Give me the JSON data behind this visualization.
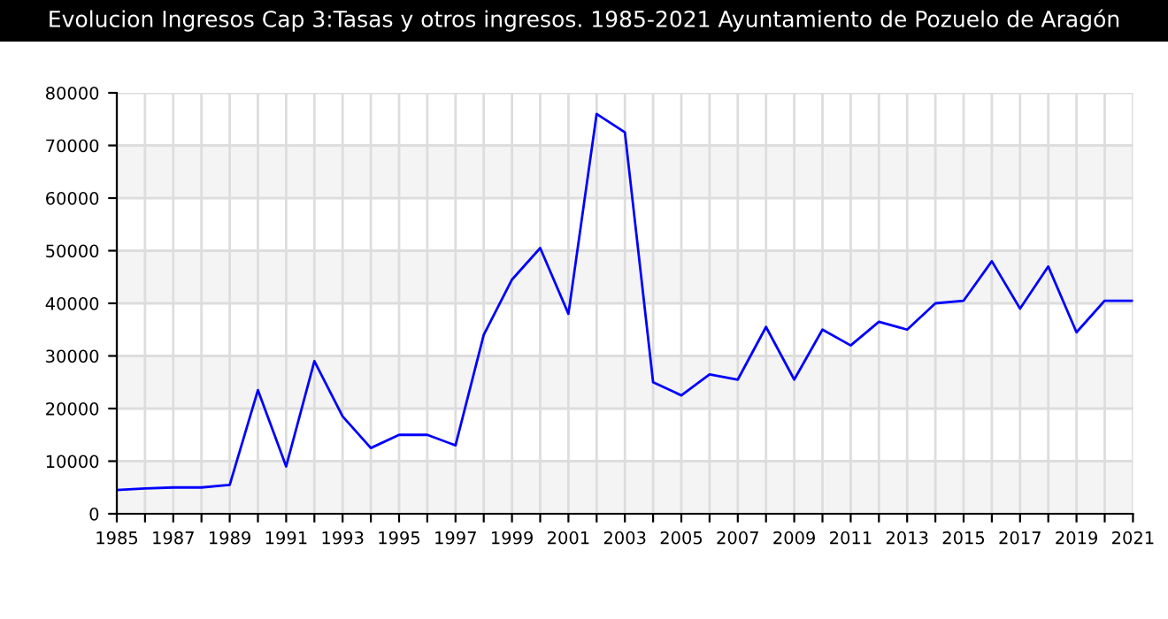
{
  "chart_data": {
    "type": "line",
    "title": "Evolucion Ingresos Cap 3:Tasas y otros ingresos. 1985-2021 Ayuntamiento de Pozuelo de Aragón",
    "x": [
      1985,
      1986,
      1987,
      1988,
      1989,
      1990,
      1991,
      1992,
      1993,
      1994,
      1995,
      1996,
      1997,
      1998,
      1999,
      2000,
      2001,
      2002,
      2003,
      2004,
      2005,
      2006,
      2007,
      2008,
      2009,
      2010,
      2011,
      2012,
      2013,
      2014,
      2015,
      2016,
      2017,
      2018,
      2019,
      2020,
      2021
    ],
    "series": [
      {
        "color": "#0000ff",
        "values": [
          4500,
          4800,
          5000,
          5000,
          5500,
          23500,
          9000,
          29000,
          18500,
          12500,
          15000,
          15000,
          13000,
          34000,
          44500,
          50500,
          38000,
          76000,
          72500,
          25000,
          22500,
          26500,
          25500,
          35500,
          25500,
          35000,
          32000,
          36500,
          35000,
          40000,
          40500,
          48000,
          39000,
          47000,
          34500,
          40500,
          40500
        ]
      }
    ],
    "xlim": [
      1985,
      2021
    ],
    "xticks": [
      1985,
      {
        "value": 1986,
        "label": null
      },
      1987,
      {
        "value": 1988,
        "label": null
      },
      1989,
      {
        "value": 1990,
        "label": null
      },
      1991,
      {
        "value": 1992,
        "label": null
      },
      1993,
      {
        "value": 1994,
        "label": null
      },
      1995,
      {
        "value": 1996,
        "label": null
      },
      1997,
      {
        "value": 1998,
        "label": null
      },
      1999,
      {
        "value": 2000,
        "label": null
      },
      2001,
      {
        "value": 2002,
        "label": null
      },
      2003,
      {
        "value": 2004,
        "label": null
      },
      2005,
      {
        "value": 2006,
        "label": null
      },
      2007,
      {
        "value": 2008,
        "label": null
      },
      2009,
      {
        "value": 2010,
        "label": null
      },
      2011,
      {
        "value": 2012,
        "label": null
      },
      2013,
      {
        "value": 2014,
        "label": null
      },
      2015,
      {
        "value": 2016,
        "label": null
      },
      2017,
      {
        "value": 2018,
        "label": null
      },
      2019,
      {
        "value": 2020,
        "label": null
      },
      2021
    ],
    "ylim": [
      0,
      80000
    ],
    "yticks": [
      0,
      10000,
      20000,
      30000,
      40000,
      50000,
      60000,
      70000,
      80000
    ],
    "grid": true,
    "legend": false,
    "marker": "none",
    "line_style": "solid"
  }
}
